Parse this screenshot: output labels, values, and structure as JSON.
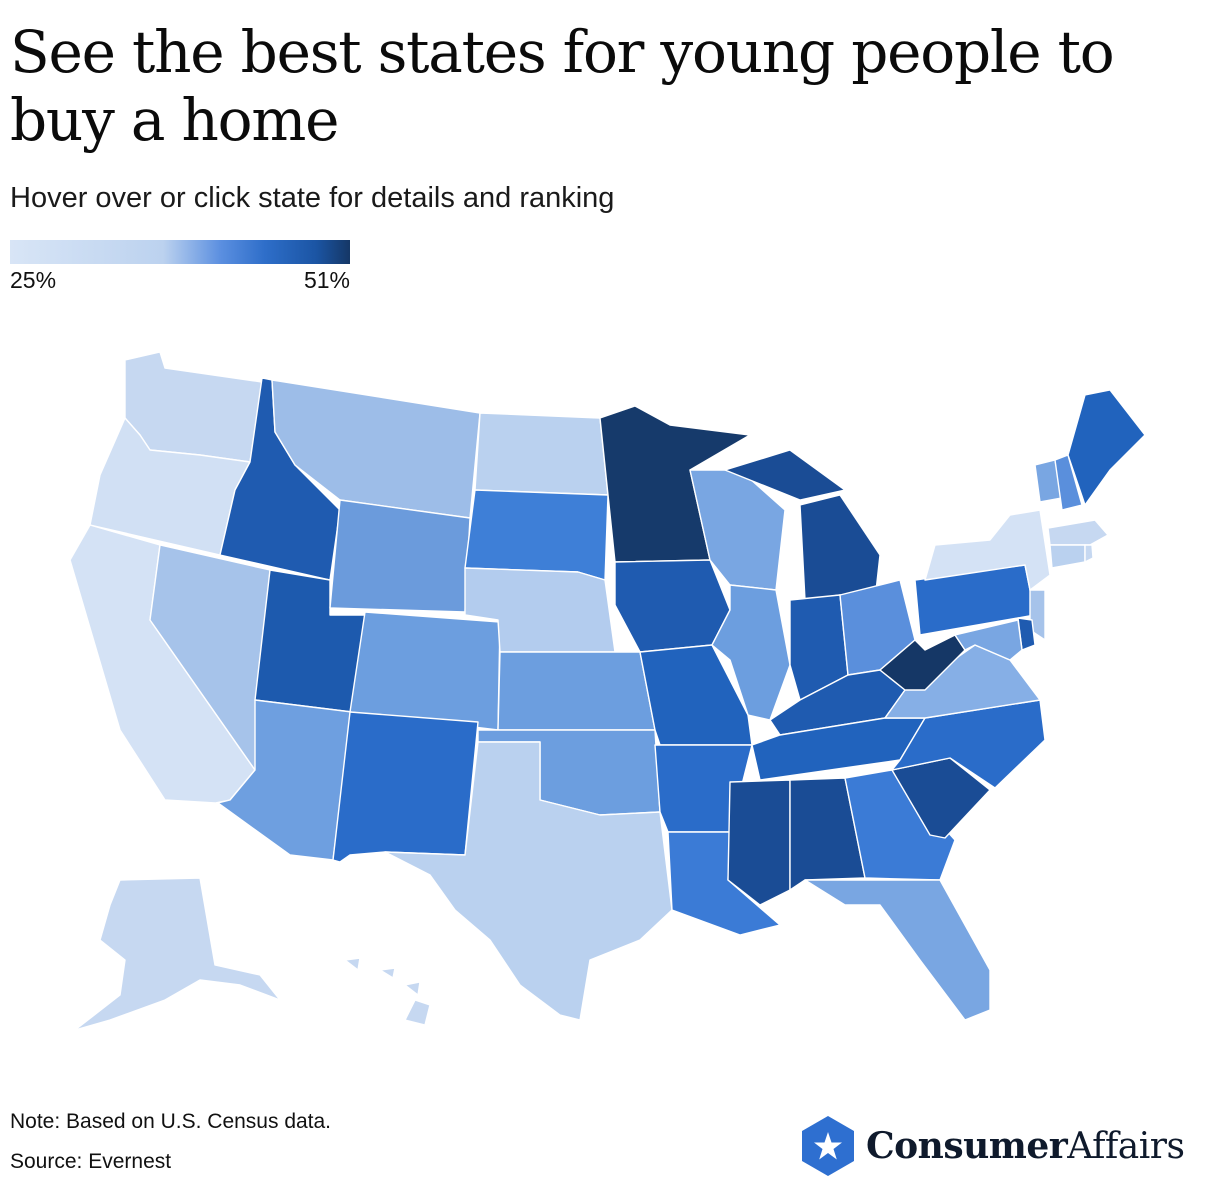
{
  "title": "See the best states for young people to buy a home",
  "subtitle": "Hover over or click state for details and ranking",
  "legend": {
    "min_label": "25%",
    "max_label": "51%",
    "min": 25,
    "max": 51
  },
  "note": "Note: Based on U.S. Census data.",
  "source": "Source: Evernest",
  "logo": {
    "bold": "Consumer",
    "regular": "Affairs",
    "icon": "star-hexagon-icon"
  },
  "colors": {
    "scale_low": "#d8e5f6",
    "scale_high": "#153766",
    "brand": "#2e6fd0"
  },
  "states": [
    {
      "code": "WA",
      "name": "Washington",
      "color": "#c6d8f1"
    },
    {
      "code": "OR",
      "name": "Oregon",
      "color": "#d1e0f4"
    },
    {
      "code": "CA",
      "name": "California",
      "color": "#d4e2f5"
    },
    {
      "code": "ID",
      "name": "Idaho",
      "color": "#1f5bb0"
    },
    {
      "code": "NV",
      "name": "Nevada",
      "color": "#a6c3ea"
    },
    {
      "code": "UT",
      "name": "Utah",
      "color": "#1d5aae"
    },
    {
      "code": "AZ",
      "name": "Arizona",
      "color": "#6e9fe0"
    },
    {
      "code": "MT",
      "name": "Montana",
      "color": "#9dbde8"
    },
    {
      "code": "WY",
      "name": "Wyoming",
      "color": "#6b9bdc"
    },
    {
      "code": "CO",
      "name": "Colorado",
      "color": "#6c9edf"
    },
    {
      "code": "NM",
      "name": "New Mexico",
      "color": "#2a6cc9"
    },
    {
      "code": "ND",
      "name": "North Dakota",
      "color": "#bad1ef"
    },
    {
      "code": "SD",
      "name": "South Dakota",
      "color": "#3e7fd7"
    },
    {
      "code": "NE",
      "name": "Nebraska",
      "color": "#b3ccee"
    },
    {
      "code": "KS",
      "name": "Kansas",
      "color": "#6c9edf"
    },
    {
      "code": "OK",
      "name": "Oklahoma",
      "color": "#6c9edf"
    },
    {
      "code": "TX",
      "name": "Texas",
      "color": "#bad1ef"
    },
    {
      "code": "MN",
      "name": "Minnesota",
      "color": "#163a6b"
    },
    {
      "code": "IA",
      "name": "Iowa",
      "color": "#1f5bb0"
    },
    {
      "code": "MO",
      "name": "Missouri",
      "color": "#2163bd"
    },
    {
      "code": "AR",
      "name": "Arkansas",
      "color": "#2a6cc9"
    },
    {
      "code": "LA",
      "name": "Louisiana",
      "color": "#3b7bd6"
    },
    {
      "code": "WI",
      "name": "Wisconsin",
      "color": "#79a6e2"
    },
    {
      "code": "IL",
      "name": "Illinois",
      "color": "#6c9edf"
    },
    {
      "code": "MI",
      "name": "Michigan",
      "color": "#1a4c95"
    },
    {
      "code": "IN",
      "name": "Indiana",
      "color": "#1f5bb0"
    },
    {
      "code": "OH",
      "name": "Ohio",
      "color": "#5a8fdc"
    },
    {
      "code": "KY",
      "name": "Kentucky",
      "color": "#1f5bb0"
    },
    {
      "code": "TN",
      "name": "Tennessee",
      "color": "#2163bd"
    },
    {
      "code": "MS",
      "name": "Mississippi",
      "color": "#1a4c95"
    },
    {
      "code": "AL",
      "name": "Alabama",
      "color": "#1a4c95"
    },
    {
      "code": "GA",
      "name": "Georgia",
      "color": "#3b7bd6"
    },
    {
      "code": "FL",
      "name": "Florida",
      "color": "#79a6e2"
    },
    {
      "code": "SC",
      "name": "South Carolina",
      "color": "#1a4c95"
    },
    {
      "code": "NC",
      "name": "North Carolina",
      "color": "#2a6cc9"
    },
    {
      "code": "VA",
      "name": "Virginia",
      "color": "#86afe6"
    },
    {
      "code": "WV",
      "name": "West Virginia",
      "color": "#153766"
    },
    {
      "code": "PA",
      "name": "Pennsylvania",
      "color": "#2a6cc9"
    },
    {
      "code": "NY",
      "name": "New York",
      "color": "#d4e2f5"
    },
    {
      "code": "NJ",
      "name": "New Jersey",
      "color": "#a6c3ea"
    },
    {
      "code": "DE",
      "name": "Delaware",
      "color": "#1f5bb0"
    },
    {
      "code": "MD",
      "name": "Maryland",
      "color": "#79a6e2"
    },
    {
      "code": "VT",
      "name": "Vermont",
      "color": "#79a6e2"
    },
    {
      "code": "NH",
      "name": "New Hampshire",
      "color": "#5a8fdc"
    },
    {
      "code": "ME",
      "name": "Maine",
      "color": "#2163bd"
    },
    {
      "code": "MA",
      "name": "Massachusetts",
      "color": "#c6d8f1"
    },
    {
      "code": "CT",
      "name": "Connecticut",
      "color": "#bad1ef"
    },
    {
      "code": "RI",
      "name": "Rhode Island",
      "color": "#c6d8f1"
    },
    {
      "code": "AK",
      "name": "Alaska",
      "color": "#c6d8f1"
    },
    {
      "code": "HI",
      "name": "Hawaii",
      "color": "#c6d8f1"
    }
  ]
}
